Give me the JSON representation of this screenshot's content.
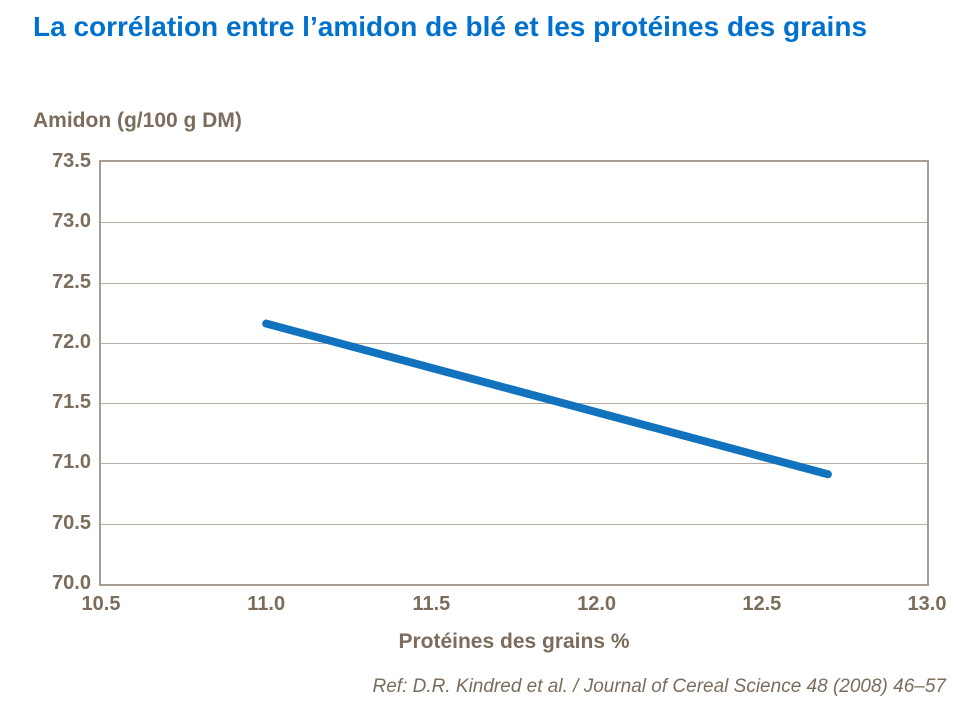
{
  "page": {
    "title": "La corrélation entre l’amidon de blé et les protéines des grains",
    "reference": "Ref: D.R. Kindred et al. / Journal of Cereal Science 48 (2008) 46–57"
  },
  "colors": {
    "title_blue": "#0072CE",
    "line_blue": "#1173BE",
    "axis_text_taupe": "#7B6C5C",
    "gridline": "#B9AEA3",
    "plot_border": "#A79D92",
    "background": "#FFFFFF"
  },
  "chart_data": {
    "type": "line",
    "title": "La corrélation entre l’amidon de blé et les protéines des grains",
    "xlabel": "Protéines des grains %",
    "ylabel": "Amidon (g/100 g DM)",
    "xlim": [
      10.5,
      13.0
    ],
    "ylim": [
      70.0,
      73.5
    ],
    "x_ticks": [
      10.5,
      11.0,
      11.5,
      12.0,
      12.5,
      13.0
    ],
    "y_ticks": [
      70.0,
      70.5,
      71.0,
      71.5,
      72.0,
      72.5,
      73.0,
      73.5
    ],
    "tick_decimals": 1,
    "grid": true,
    "legend_position": "none",
    "series": [
      {
        "x": [
          11.0,
          12.7
        ],
        "y": [
          72.16,
          70.91
        ],
        "color": "#1173BE",
        "stroke_width": 8
      }
    ]
  }
}
